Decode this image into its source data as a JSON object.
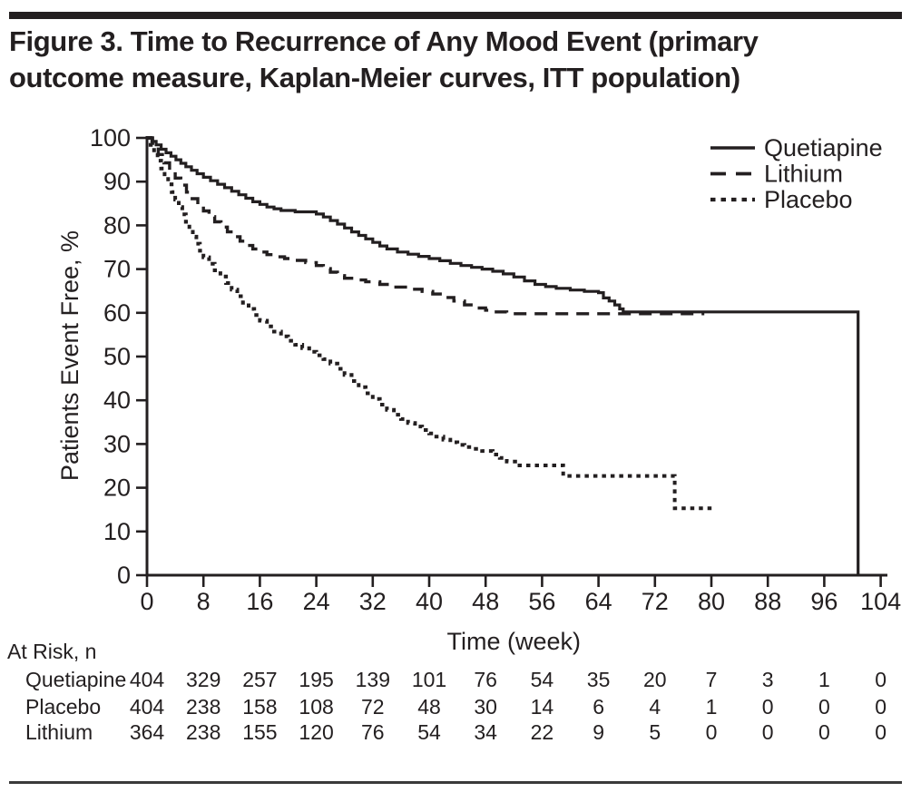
{
  "figure": {
    "title_line1": "Figure 3. Time to Recurrence of Any Mood Event (primary",
    "title_line2": "outcome measure, Kaplan-Meier curves, ITT population)",
    "ink_color": "#231f20",
    "background_color": "#ffffff"
  },
  "chart_data": {
    "type": "line",
    "subtype": "kaplan-meier-step",
    "title": "",
    "xlabel": "Time (week)",
    "ylabel": "Patients Event Free, %",
    "xlim": [
      0,
      104
    ],
    "ylim": [
      0,
      100
    ],
    "x_ticks": [
      0,
      8,
      16,
      24,
      32,
      40,
      48,
      56,
      64,
      72,
      80,
      88,
      96,
      104
    ],
    "y_ticks": [
      0,
      10,
      20,
      30,
      40,
      50,
      60,
      70,
      80,
      90,
      100
    ],
    "grid": false,
    "legend": {
      "position": "top-right"
    },
    "series": [
      {
        "name": "Quetiapine",
        "line_style": "solid",
        "points": [
          [
            0,
            100
          ],
          [
            0.7,
            99.2
          ],
          [
            1.3,
            98.4
          ],
          [
            2,
            97.4
          ],
          [
            2.7,
            96.6
          ],
          [
            3.4,
            95.8
          ],
          [
            4.1,
            95
          ],
          [
            4.8,
            94.2
          ],
          [
            5.5,
            93.4
          ],
          [
            6.3,
            92.6
          ],
          [
            7.1,
            91.8
          ],
          [
            8,
            91
          ],
          [
            9,
            90.2
          ],
          [
            10,
            89.4
          ],
          [
            11,
            88.6
          ],
          [
            12,
            87.8
          ],
          [
            13,
            87
          ],
          [
            14,
            86.2
          ],
          [
            15,
            85.4
          ],
          [
            16,
            84.8
          ],
          [
            17,
            84.2
          ],
          [
            18,
            83.8
          ],
          [
            19,
            83.4
          ],
          [
            21,
            83.1
          ],
          [
            24,
            82.6
          ],
          [
            25,
            81.9
          ],
          [
            26,
            81.1
          ],
          [
            27,
            80.3
          ],
          [
            28,
            79.4
          ],
          [
            29,
            78.5
          ],
          [
            30,
            77.7
          ],
          [
            31,
            76.9
          ],
          [
            32,
            76.1
          ],
          [
            33,
            75.3
          ],
          [
            34,
            74.6
          ],
          [
            35.5,
            73.9
          ],
          [
            37,
            73.4
          ],
          [
            38.5,
            72.9
          ],
          [
            40,
            72.4
          ],
          [
            41.5,
            71.9
          ],
          [
            43,
            71.3
          ],
          [
            44.5,
            70.8
          ],
          [
            46,
            70.4
          ],
          [
            47.5,
            70
          ],
          [
            49,
            69.5
          ],
          [
            50.5,
            68.9
          ],
          [
            52,
            68.2
          ],
          [
            53.5,
            67.3
          ],
          [
            55,
            66.5
          ],
          [
            56.5,
            66
          ],
          [
            58,
            65.6
          ],
          [
            60,
            65.2
          ],
          [
            62,
            64.9
          ],
          [
            64,
            64.6
          ],
          [
            64.7,
            63.4
          ],
          [
            65.5,
            62.7
          ],
          [
            66.3,
            61.8
          ],
          [
            67,
            60.9
          ],
          [
            67.5,
            60.2
          ],
          [
            100.8,
            60.2
          ],
          [
            100.8,
            0
          ]
        ]
      },
      {
        "name": "Lithium",
        "line_style": "long-dash",
        "points": [
          [
            0,
            100
          ],
          [
            0.8,
            98.2
          ],
          [
            1.6,
            96.2
          ],
          [
            2.4,
            94.3
          ],
          [
            3.2,
            92.5
          ],
          [
            4,
            90.8
          ],
          [
            4.8,
            89.2
          ],
          [
            5.6,
            87.6
          ],
          [
            6.4,
            86.1
          ],
          [
            7.2,
            84.7
          ],
          [
            8,
            83.3
          ],
          [
            8.8,
            82
          ],
          [
            9.6,
            80.8
          ],
          [
            10.5,
            79.6
          ],
          [
            11.4,
            78.5
          ],
          [
            12.3,
            77.4
          ],
          [
            13.2,
            76.4
          ],
          [
            14.1,
            75.4
          ],
          [
            15,
            74.6
          ],
          [
            16,
            73.9
          ],
          [
            17,
            73.3
          ],
          [
            18,
            72.8
          ],
          [
            19.5,
            72.4
          ],
          [
            21,
            72
          ],
          [
            22.5,
            71.5
          ],
          [
            24,
            70.8
          ],
          [
            25,
            70.1
          ],
          [
            26,
            69.3
          ],
          [
            27,
            68.5
          ],
          [
            28,
            67.9
          ],
          [
            29.5,
            67.5
          ],
          [
            31,
            67.1
          ],
          [
            33,
            66.5
          ],
          [
            35,
            65.9
          ],
          [
            37,
            65.4
          ],
          [
            39,
            64.9
          ],
          [
            40.5,
            64.3
          ],
          [
            42,
            63.5
          ],
          [
            43.5,
            62.7
          ],
          [
            45,
            61.8
          ],
          [
            46.5,
            61.1
          ],
          [
            48,
            60.6
          ],
          [
            49.5,
            60.2
          ],
          [
            51,
            59.8
          ],
          [
            79,
            59.8
          ]
        ]
      },
      {
        "name": "Placebo",
        "line_style": "short-dash",
        "points": [
          [
            0,
            100
          ],
          [
            0.5,
            98.4
          ],
          [
            1,
            96.6
          ],
          [
            1.5,
            94.8
          ],
          [
            2,
            93
          ],
          [
            2.5,
            91.2
          ],
          [
            3,
            89.4
          ],
          [
            3.5,
            87.6
          ],
          [
            4,
            85.9
          ],
          [
            4.5,
            84.2
          ],
          [
            5,
            82.5
          ],
          [
            5.5,
            80.8
          ],
          [
            6,
            79.1
          ],
          [
            6.5,
            77.4
          ],
          [
            7,
            75.8
          ],
          [
            7.5,
            74.2
          ],
          [
            8,
            72.7
          ],
          [
            8.8,
            71.2
          ],
          [
            9.6,
            69.7
          ],
          [
            10.4,
            68.3
          ],
          [
            11.2,
            66.8
          ],
          [
            12,
            65.3
          ],
          [
            12.8,
            63.8
          ],
          [
            13.6,
            62.3
          ],
          [
            14.4,
            60.9
          ],
          [
            15.2,
            59.5
          ],
          [
            16,
            58.2
          ],
          [
            17,
            56.9
          ],
          [
            18,
            55.7
          ],
          [
            19,
            54.6
          ],
          [
            20,
            53.6
          ],
          [
            21,
            52.7
          ],
          [
            22,
            51.9
          ],
          [
            23,
            51.1
          ],
          [
            24,
            50.3
          ],
          [
            25,
            49.4
          ],
          [
            26,
            48.4
          ],
          [
            27,
            47.2
          ],
          [
            28,
            45.8
          ],
          [
            29,
            44.4
          ],
          [
            30,
            43
          ],
          [
            31,
            41.6
          ],
          [
            32,
            40.3
          ],
          [
            33,
            39
          ],
          [
            34,
            37.8
          ],
          [
            35,
            36.7
          ],
          [
            36,
            35.7
          ],
          [
            37,
            34.8
          ],
          [
            38,
            34
          ],
          [
            39,
            33.2
          ],
          [
            40,
            32.4
          ],
          [
            41,
            31.7
          ],
          [
            42,
            31
          ],
          [
            43,
            30.4
          ],
          [
            44,
            29.8
          ],
          [
            45,
            29.3
          ],
          [
            46,
            28.9
          ],
          [
            47.5,
            28.4
          ],
          [
            49,
            27.6
          ],
          [
            50,
            26.8
          ],
          [
            51,
            26
          ],
          [
            52.5,
            25.1
          ],
          [
            59,
            22.7
          ],
          [
            74.8,
            15.3
          ],
          [
            80.3,
            15.3
          ]
        ]
      }
    ],
    "at_risk": {
      "label": "At Risk, n",
      "weeks": [
        0,
        8,
        16,
        24,
        32,
        40,
        48,
        56,
        64,
        72,
        80,
        88,
        96,
        104
      ],
      "rows": [
        {
          "name": "Quetiapine",
          "values": [
            404,
            329,
            257,
            195,
            139,
            101,
            76,
            54,
            35,
            20,
            7,
            3,
            1,
            0
          ]
        },
        {
          "name": "Placebo",
          "values": [
            404,
            238,
            158,
            108,
            72,
            48,
            30,
            14,
            6,
            4,
            1,
            0,
            0,
            0
          ]
        },
        {
          "name": "Lithium",
          "values": [
            364,
            238,
            155,
            120,
            76,
            54,
            34,
            22,
            9,
            5,
            0,
            0,
            0,
            0
          ]
        }
      ]
    }
  }
}
